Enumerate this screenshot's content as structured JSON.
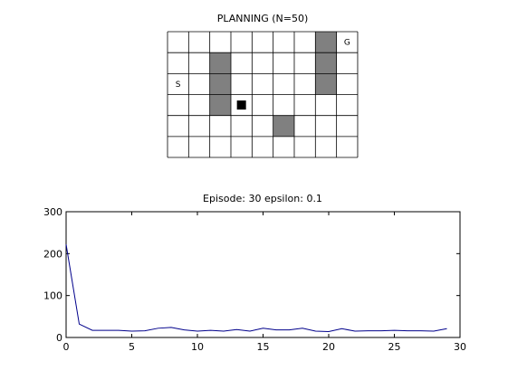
{
  "grid_panel": {
    "title": "PLANNING (N=50)",
    "rows": 6,
    "cols": 9,
    "walls": [
      [
        0,
        7
      ],
      [
        1,
        2
      ],
      [
        1,
        7
      ],
      [
        2,
        2
      ],
      [
        2,
        7
      ],
      [
        3,
        2
      ],
      [
        4,
        5
      ]
    ],
    "start": {
      "row": 2,
      "col": 0,
      "label": "S"
    },
    "goal": {
      "row": 0,
      "col": 8,
      "label": "G"
    },
    "agent": {
      "row": 3,
      "col": 3
    },
    "colors": {
      "wall": "#808080",
      "agent": "#000000",
      "line": "#000000",
      "empty": "#ffffff"
    }
  },
  "chart_data": {
    "type": "line",
    "title": "Episode: 30 epsilon: 0.1",
    "xlabel": "",
    "ylabel": "",
    "xlim": [
      0,
      30
    ],
    "ylim": [
      0,
      300
    ],
    "xticks": [
      0,
      5,
      10,
      15,
      20,
      25,
      30
    ],
    "yticks": [
      0,
      100,
      200,
      300
    ],
    "grid": false,
    "series": [
      {
        "color": "#00008b",
        "x": [
          0,
          1,
          2,
          3,
          4,
          5,
          6,
          7,
          8,
          9,
          10,
          11,
          12,
          13,
          14,
          15,
          16,
          17,
          18,
          19,
          20,
          21,
          22,
          23,
          24,
          25,
          26,
          27,
          28,
          29
        ],
        "y": [
          222,
          32,
          17,
          17,
          17,
          15,
          16,
          22,
          24,
          18,
          15,
          17,
          15,
          19,
          15,
          22,
          18,
          18,
          22,
          15,
          14,
          21,
          15,
          16,
          16,
          17,
          16,
          16,
          15,
          21
        ]
      }
    ]
  }
}
